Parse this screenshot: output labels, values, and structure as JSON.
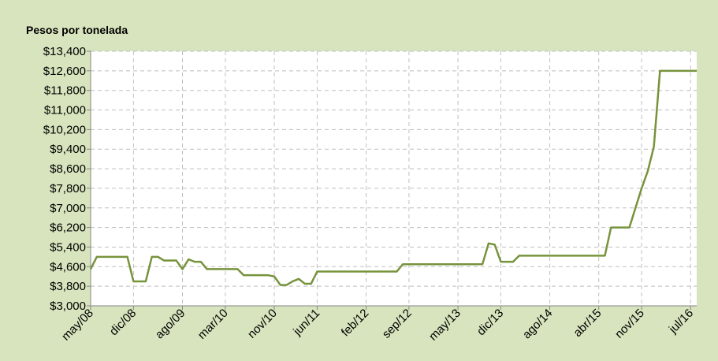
{
  "chart_data": {
    "type": "line",
    "title": "Pesos por tonelada",
    "x": [
      "2008-05",
      "2008-06",
      "2008-07",
      "2008-08",
      "2008-09",
      "2008-10",
      "2008-11",
      "2008-12",
      "2009-01",
      "2009-02",
      "2009-03",
      "2009-04",
      "2009-05",
      "2009-06",
      "2009-07",
      "2009-08",
      "2009-09",
      "2009-10",
      "2009-11",
      "2009-12",
      "2010-01",
      "2010-02",
      "2010-03",
      "2010-04",
      "2010-05",
      "2010-06",
      "2010-07",
      "2010-08",
      "2010-09",
      "2010-10",
      "2010-11",
      "2010-12",
      "2011-01",
      "2011-02",
      "2011-03",
      "2011-04",
      "2011-05",
      "2011-06",
      "2011-07",
      "2011-08",
      "2011-09",
      "2011-10",
      "2011-11",
      "2011-12",
      "2012-01",
      "2012-02",
      "2012-03",
      "2012-04",
      "2012-05",
      "2012-06",
      "2012-07",
      "2012-08",
      "2012-09",
      "2012-10",
      "2012-11",
      "2012-12",
      "2013-01",
      "2013-02",
      "2013-03",
      "2013-04",
      "2013-05",
      "2013-06",
      "2013-07",
      "2013-08",
      "2013-09",
      "2013-10",
      "2013-11",
      "2013-12",
      "2014-01",
      "2014-02",
      "2014-03",
      "2014-04",
      "2014-05",
      "2014-06",
      "2014-07",
      "2014-08",
      "2014-09",
      "2014-10",
      "2014-11",
      "2014-12",
      "2015-01",
      "2015-02",
      "2015-03",
      "2015-04",
      "2015-05",
      "2015-06",
      "2015-07",
      "2015-08",
      "2015-09",
      "2015-10",
      "2015-11",
      "2015-12",
      "2016-01",
      "2016-02",
      "2016-03",
      "2016-04",
      "2016-05",
      "2016-06",
      "2016-07",
      "2016-08"
    ],
    "series": [
      {
        "color": "#77933c",
        "values": [
          4500,
          5000,
          5000,
          5000,
          5000,
          5000,
          5000,
          4000,
          4000,
          4000,
          5000,
          5000,
          4850,
          4850,
          4850,
          4500,
          4900,
          4800,
          4800,
          4500,
          4500,
          4500,
          4500,
          4500,
          4500,
          4250,
          4250,
          4250,
          4250,
          4250,
          4200,
          3850,
          3850,
          4000,
          4100,
          3900,
          3900,
          4400,
          4400,
          4400,
          4400,
          4400,
          4400,
          4400,
          4400,
          4400,
          4400,
          4400,
          4400,
          4400,
          4400,
          4700,
          4700,
          4700,
          4700,
          4700,
          4700,
          4700,
          4700,
          4700,
          4700,
          4700,
          4700,
          4700,
          4700,
          5550,
          5500,
          4800,
          4800,
          4800,
          5050,
          5050,
          5050,
          5050,
          5050,
          5050,
          5050,
          5050,
          5050,
          5050,
          5050,
          5050,
          5050,
          5050,
          5050,
          6200,
          6200,
          6200,
          6200,
          7000,
          7800,
          8500,
          9500,
          12600,
          12600,
          12600,
          12600,
          12600,
          12600,
          12600
        ]
      }
    ],
    "xlim": [
      "2008-05",
      "2016-08"
    ],
    "xticks": [
      {
        "value": "2008-05",
        "label": "may/08"
      },
      {
        "value": "2008-12",
        "label": "dic/08"
      },
      {
        "value": "2009-08",
        "label": "ago/09"
      },
      {
        "value": "2010-03",
        "label": "mar/10"
      },
      {
        "value": "2010-11",
        "label": "nov/10"
      },
      {
        "value": "2011-06",
        "label": "jun/11"
      },
      {
        "value": "2012-02",
        "label": "feb/12"
      },
      {
        "value": "2012-09",
        "label": "sep/12"
      },
      {
        "value": "2013-05",
        "label": "may/13"
      },
      {
        "value": "2013-12",
        "label": "dic/13"
      },
      {
        "value": "2014-08",
        "label": "ago/14"
      },
      {
        "value": "2015-04",
        "label": "abr/15"
      },
      {
        "value": "2015-11",
        "label": "nov/15"
      },
      {
        "value": "2016-07",
        "label": "jul/16"
      }
    ],
    "ylim": [
      3000,
      13400
    ],
    "yticks": [
      {
        "value": 3000,
        "label": "$3,000"
      },
      {
        "value": 3800,
        "label": "$3,800"
      },
      {
        "value": 4600,
        "label": "$4,600"
      },
      {
        "value": 5400,
        "label": "$5,400"
      },
      {
        "value": 6200,
        "label": "$6,200"
      },
      {
        "value": 7000,
        "label": "$7,000"
      },
      {
        "value": 7800,
        "label": "$7,800"
      },
      {
        "value": 8600,
        "label": "$8,600"
      },
      {
        "value": 9400,
        "label": "$9,400"
      },
      {
        "value": 10200,
        "label": "$10,200"
      },
      {
        "value": 11000,
        "label": "$11,000"
      },
      {
        "value": 11800,
        "label": "$11,800"
      },
      {
        "value": 12600,
        "label": "$12,600"
      },
      {
        "value": 13400,
        "label": "$13,400"
      }
    ],
    "grid": true
  }
}
